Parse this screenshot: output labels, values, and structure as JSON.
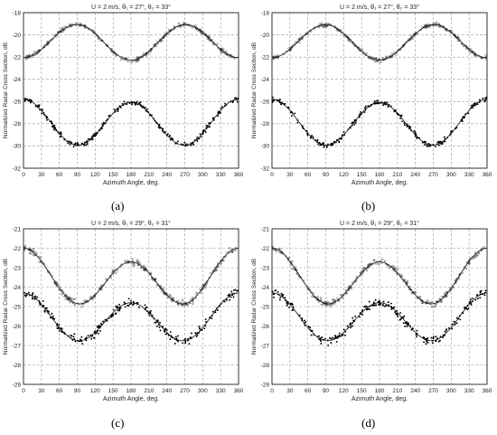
{
  "figure": {
    "panel_labels": [
      "(a)",
      "(b)",
      "(c)",
      "(d)"
    ]
  },
  "chart_data": [
    {
      "type": "scatter",
      "title": "U = 2 m/s, θ₁ = 27°, θ₂ = 33°",
      "xlabel": "Azimuth Angle, deg.",
      "ylabel": "Normalized Radar Cross Section, dB",
      "xlim": [
        0,
        360
      ],
      "ylim": [
        -32,
        -18
      ],
      "xticks": [
        0,
        30,
        60,
        90,
        120,
        150,
        180,
        210,
        240,
        270,
        300,
        330,
        360
      ],
      "yticks": [
        -32,
        -30,
        -28,
        -26,
        -24,
        -22,
        -20,
        -18
      ],
      "grid": true,
      "series": [
        {
          "upper": true,
          "model": {
            "mean": -20.62,
            "a1": 0.11,
            "a2": 1.54,
            "phase2": 2
          },
          "color": "#333333",
          "marker": "open"
        },
        {
          "upper": false,
          "model": {
            "mean": -27.93,
            "a1": 0.14,
            "a2": 2.0,
            "phase2": 0
          },
          "color": "#000000",
          "marker": "filled"
        }
      ]
    },
    {
      "type": "scatter",
      "title": "U = 2 m/s, θ₁ = 27°, θ₂ = 33°",
      "xlabel": "Azimuth Angle, deg.",
      "ylabel": "Normalized Radar Cross Section, dB",
      "xlim": [
        0,
        360
      ],
      "ylim": [
        -32,
        -18
      ],
      "xticks": [
        0,
        30,
        60,
        90,
        120,
        150,
        180,
        210,
        240,
        270,
        300,
        330,
        360
      ],
      "yticks": [
        -32,
        -30,
        -28,
        -26,
        -24,
        -22,
        -20,
        -18
      ],
      "grid": true,
      "series": [
        {
          "upper": true,
          "model": {
            "mean": -20.62,
            "a1": 0.11,
            "a2": 1.54,
            "phase2": 2
          },
          "color": "#333333",
          "marker": "open"
        },
        {
          "upper": false,
          "model": {
            "mean": -27.93,
            "a1": 0.14,
            "a2": 2.0,
            "phase2": 0
          },
          "color": "#000000",
          "marker": "filled"
        }
      ]
    },
    {
      "type": "scatter",
      "title": "U = 2 m/s, θ₁ = 29°, θ₂ = 31°",
      "xlabel": "Azimuth Angle, deg.",
      "ylabel": "Normalized Radar Cross Section, dB",
      "xlim": [
        0,
        360
      ],
      "ylim": [
        -29,
        -21
      ],
      "xticks": [
        0,
        30,
        60,
        90,
        120,
        150,
        180,
        210,
        240,
        270,
        300,
        330,
        360
      ],
      "yticks": [
        -29,
        -28,
        -27,
        -26,
        -25,
        -24,
        -23,
        -22,
        -21
      ],
      "grid": true,
      "series": [
        {
          "upper": true,
          "model": {
            "mean": -23.6,
            "a1": 0.35,
            "a2": 1.25,
            "phase2": 0
          },
          "color": "#333333",
          "marker": "open"
        },
        {
          "upper": false,
          "model": {
            "mean": -25.65,
            "a1": 0.25,
            "a2": 1.1,
            "phase2": 0
          },
          "color": "#000000",
          "marker": "filled"
        }
      ]
    },
    {
      "type": "scatter",
      "title": "U = 2 m/s, θ₁ = 29°, θ₂ = 31°",
      "xlabel": "Azimuth Angle, deg.",
      "ylabel": "Normalized Radar Cross Section, dB",
      "xlim": [
        0,
        360
      ],
      "ylim": [
        -29,
        -21
      ],
      "xticks": [
        0,
        30,
        60,
        90,
        120,
        150,
        180,
        210,
        240,
        270,
        300,
        330,
        360
      ],
      "yticks": [
        -29,
        -28,
        -27,
        -26,
        -25,
        -24,
        -23,
        -22,
        -21
      ],
      "grid": true,
      "series": [
        {
          "upper": true,
          "model": {
            "mean": -23.6,
            "a1": 0.35,
            "a2": 1.25,
            "phase2": 0
          },
          "color": "#333333",
          "marker": "open"
        },
        {
          "upper": false,
          "model": {
            "mean": -25.65,
            "a1": 0.25,
            "a2": 1.1,
            "phase2": 0
          },
          "color": "#000000",
          "marker": "filled"
        }
      ]
    }
  ]
}
